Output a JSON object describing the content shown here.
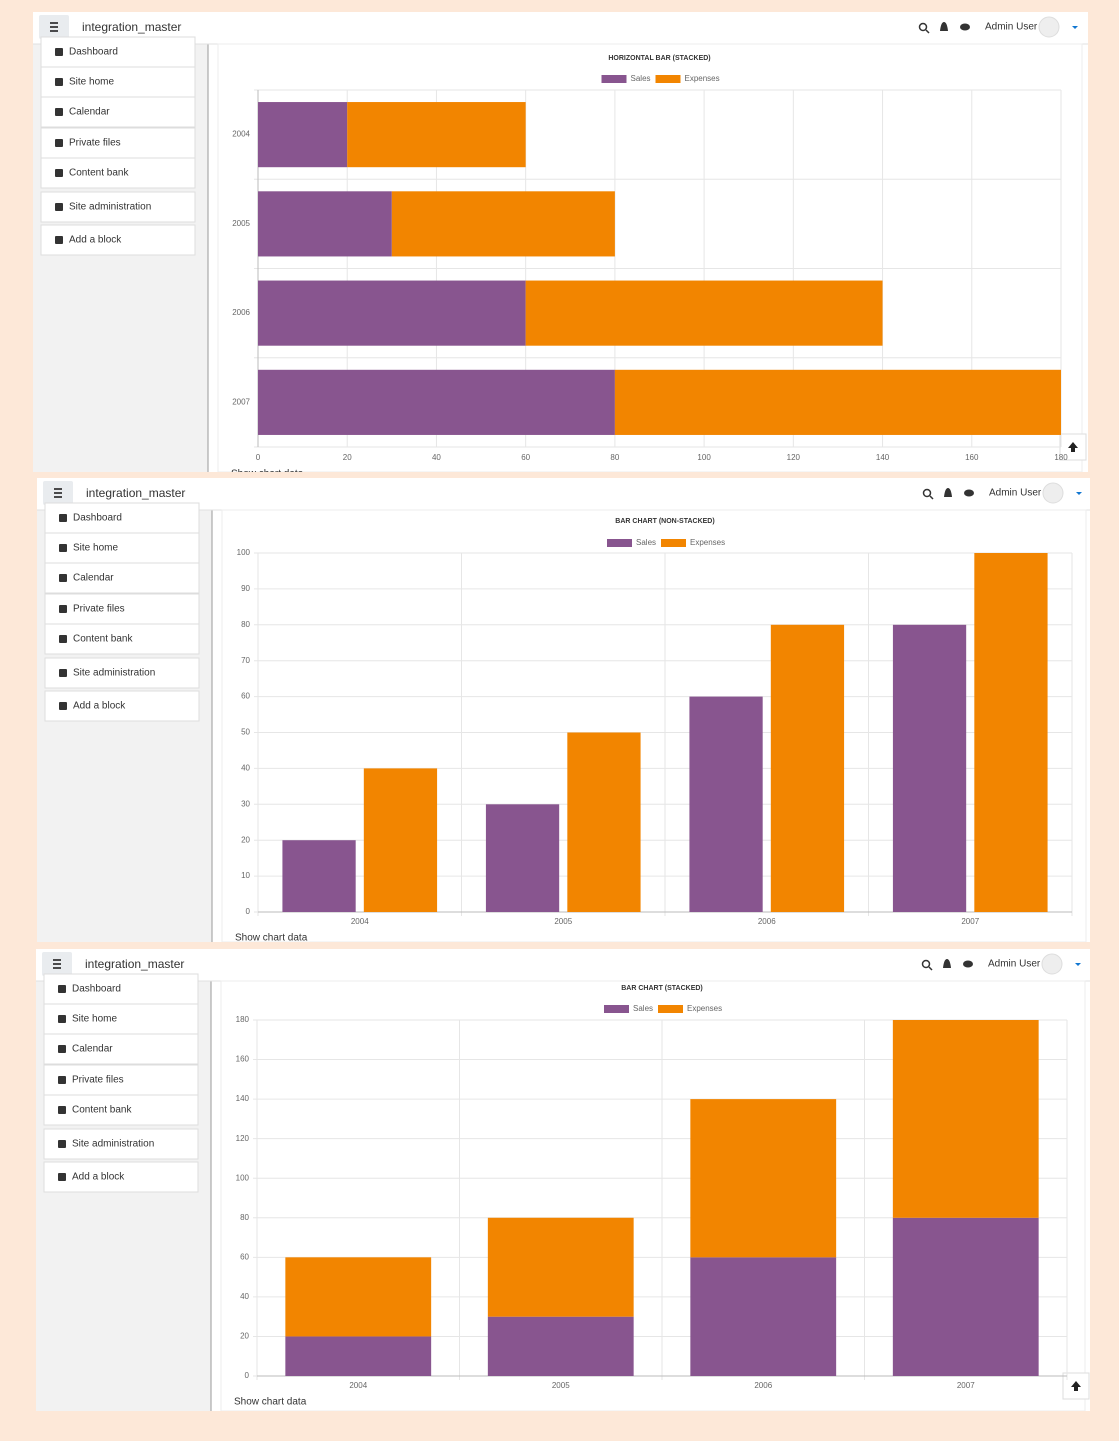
{
  "navbar": {
    "site_name": "integration_master",
    "user": "Admin User"
  },
  "sidebar": {
    "items": [
      "Dashboard",
      "Site home",
      "Calendar",
      "Private files",
      "Content bank",
      "Site administration",
      "Add a block"
    ]
  },
  "show_chart_data": "Show chart data",
  "chart_data": [
    {
      "type": "barh",
      "stacked": true,
      "title": "HORIZONTAL BAR (STACKED)",
      "categories": [
        "2004",
        "2005",
        "2006",
        "2007"
      ],
      "series": [
        {
          "name": "Sales",
          "color": "#88558f",
          "values": [
            20,
            30,
            60,
            80
          ]
        },
        {
          "name": "Expenses",
          "color": "#f28500",
          "values": [
            40,
            50,
            80,
            100
          ]
        }
      ],
      "xlim": [
        0,
        180
      ],
      "xticks": [
        0,
        20,
        40,
        60,
        80,
        100,
        120,
        140,
        160,
        180
      ],
      "grid": true
    },
    {
      "type": "bar",
      "stacked": false,
      "title": "BAR CHART (NON-STACKED)",
      "categories": [
        "2004",
        "2005",
        "2006",
        "2007"
      ],
      "series": [
        {
          "name": "Sales",
          "color": "#88558f",
          "values": [
            20,
            30,
            60,
            80
          ]
        },
        {
          "name": "Expenses",
          "color": "#f28500",
          "values": [
            40,
            50,
            80,
            100
          ]
        }
      ],
      "ylim": [
        0,
        100
      ],
      "yticks": [
        0,
        10,
        20,
        30,
        40,
        50,
        60,
        70,
        80,
        90,
        100
      ],
      "grid": true
    },
    {
      "type": "bar",
      "stacked": true,
      "title": "BAR CHART (STACKED)",
      "categories": [
        "2004",
        "2005",
        "2006",
        "2007"
      ],
      "series": [
        {
          "name": "Sales",
          "color": "#88558f",
          "values": [
            20,
            30,
            60,
            80
          ]
        },
        {
          "name": "Expenses",
          "color": "#f28500",
          "values": [
            40,
            50,
            80,
            100
          ]
        }
      ],
      "ylim": [
        0,
        180
      ],
      "yticks": [
        0,
        20,
        40,
        60,
        80,
        100,
        120,
        140,
        160,
        180
      ],
      "grid": true
    }
  ]
}
